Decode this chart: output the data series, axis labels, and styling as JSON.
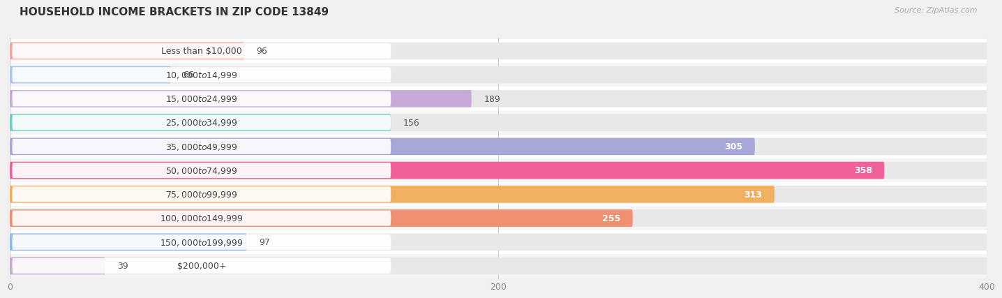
{
  "title": "HOUSEHOLD INCOME BRACKETS IN ZIP CODE 13849",
  "source": "Source: ZipAtlas.com",
  "categories": [
    "Less than $10,000",
    "$10,000 to $14,999",
    "$15,000 to $24,999",
    "$25,000 to $34,999",
    "$35,000 to $49,999",
    "$50,000 to $74,999",
    "$75,000 to $99,999",
    "$100,000 to $149,999",
    "$150,000 to $199,999",
    "$200,000+"
  ],
  "values": [
    96,
    66,
    189,
    156,
    305,
    358,
    313,
    255,
    97,
    39
  ],
  "bar_colors": [
    "#f4a6a0",
    "#a8c8f0",
    "#c8aad8",
    "#6ecdc8",
    "#a8a8d8",
    "#f0609a",
    "#f0b060",
    "#f09070",
    "#90b8e8",
    "#c8a8d0"
  ],
  "label_inside": [
    false,
    false,
    false,
    false,
    true,
    true,
    true,
    true,
    false,
    false
  ],
  "xlim": [
    0,
    400
  ],
  "xticks": [
    0,
    200,
    400
  ],
  "fig_bg": "#f0f0f0",
  "row_bg_odd": "#ffffff",
  "row_bg_even": "#f5f5f5",
  "bar_bg_color": "#e8e8e8",
  "title_fontsize": 11,
  "source_fontsize": 8,
  "label_fontsize": 9,
  "value_fontsize": 9
}
